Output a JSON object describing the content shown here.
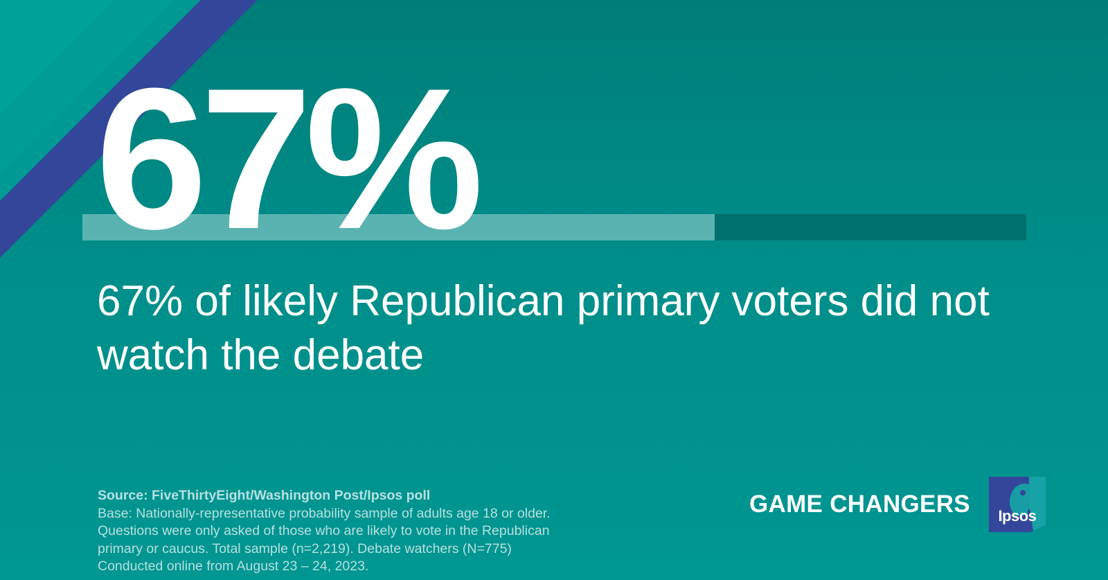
{
  "big_stat": "67%",
  "progress": {
    "percent": 67,
    "fill_color": "#5bb3b1",
    "track_color": "#00706c"
  },
  "headline": "67% of likely Republican primary voters did not watch the debate",
  "footnote": {
    "source": "Source: FiveThirtyEight/Washington Post/Ipsos poll",
    "lines": [
      "Base: Nationally-representative probability sample of adults age 18 or older.",
      "Questions were only asked of those who are likely to vote in the Republican",
      "primary or caucus. Total sample (n=2,219). Debate watchers (N=775)",
      "Conducted online from August 23 – 24, 2023."
    ]
  },
  "brand": {
    "tagline": "GAME CHANGERS",
    "logo_text": "Ipsos"
  },
  "colors": {
    "background": "#008c88",
    "stripe_teal": "#00a09b",
    "stripe_blue": "#33469a",
    "text": "#ffffff",
    "footnote_text": "#b7e0de"
  }
}
